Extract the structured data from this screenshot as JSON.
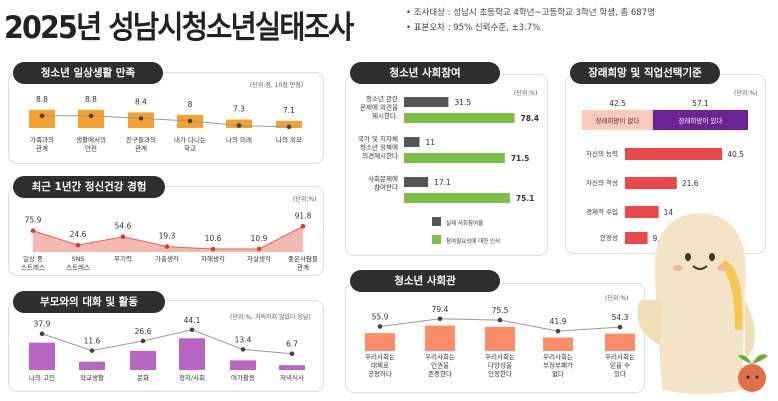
{
  "header": {
    "title": "2025년 성남시청소년실태조사",
    "bullets": [
      "조사대상 : 성남시 초등학교 4학년~고등학교 3학년 학생, 총 687명",
      "표본오차 : 95% 신뢰수준, ±3.7%"
    ]
  },
  "colors": {
    "orange": "#f7a030",
    "area": "#f4b9b0",
    "areaLine": "#e8604f",
    "purple": "#b766c4",
    "dark": "#555555",
    "green": "#7cbf45",
    "red": "#e84848",
    "deepPurple": "#6b2496",
    "pink": "#fcc9bb",
    "salmon": "#fd8c68",
    "pill": "#2e2e2e"
  },
  "chart_data": [
    {
      "id": "daily",
      "type": "bar",
      "title": "청소년 일상생활 만족",
      "unit": "(단위:점, 10점 만점)",
      "categories": [
        "가족과의\n관계",
        "생활에서의\n안전",
        "친구들과의\n관계",
        "내가 다니는\n학교",
        "나의 미래",
        "나의 외모"
      ],
      "values": [
        8.8,
        8.8,
        8.4,
        8,
        7.3,
        7.1
      ]
    },
    {
      "id": "mental",
      "type": "area",
      "title": "최근 1년간 정신건강 경험",
      "unit": "(단위:%)",
      "categories": [
        "일상 중\n스트레스",
        "SNS\n스트레스",
        "무기력",
        "가출생각",
        "자해생각",
        "자살생각",
        "좋은사람들\n관계"
      ],
      "values": [
        75.9,
        24.6,
        54.6,
        19.3,
        10.6,
        10.9,
        91.8
      ]
    },
    {
      "id": "parents",
      "type": "bar",
      "title": "부모와의 대화 및 활동",
      "unit": "(단위:%, 거의하지 않았다 응답)",
      "categories": [
        "나의 고민",
        "학교생활",
        "문화",
        "정치/사회",
        "여가활동",
        "저녁식사"
      ],
      "values": [
        37.9,
        11.6,
        26.6,
        44.1,
        13.4,
        6.7
      ]
    },
    {
      "id": "participation",
      "type": "bar",
      "orientation": "horizontal",
      "title": "청소년 사회참여",
      "unit": "(단위:%)",
      "categories": [
        "청소년 관련\n문제에 의견을\n제시한다.",
        "국가 및 지자체\n청소년 정책에\n의견제시한다",
        "사회문제에\n참여한다"
      ],
      "series": [
        {
          "name": "실제 사회참여율",
          "values": [
            31.5,
            11,
            17.1
          ]
        },
        {
          "name": "참여필요성에 대한 인식",
          "values": [
            78.4,
            71.5,
            75.1
          ]
        }
      ],
      "legend": "bottom"
    },
    {
      "id": "hope",
      "type": "bar",
      "orientation": "horizontal",
      "title": "장래희망 및 직업선택기준",
      "unit": "(단위:%)",
      "stacked": {
        "categories": [
          "장래희망이 없다",
          "장래희망이 있다"
        ],
        "values": [
          42.5,
          57.1
        ]
      },
      "categories": [
        "자신의 능력",
        "자신의 적성",
        "경제적 수입",
        "안정성"
      ],
      "values": [
        40.5,
        21.6,
        14,
        9.4
      ]
    },
    {
      "id": "society",
      "type": "bar",
      "title": "청소년 사회관",
      "unit": "(단위:%)",
      "categories": [
        "우리사회는\n대체로\n공정하다",
        "우리사회는\n인권을\n존중한다",
        "우리사회는\n다양성을\n인정한다",
        "우리사회는\n부정부패가\n없다",
        "우리사회는\n믿을 수\n있다"
      ],
      "values": [
        55.9,
        79.4,
        75.5,
        41.9,
        54.3
      ]
    }
  ]
}
